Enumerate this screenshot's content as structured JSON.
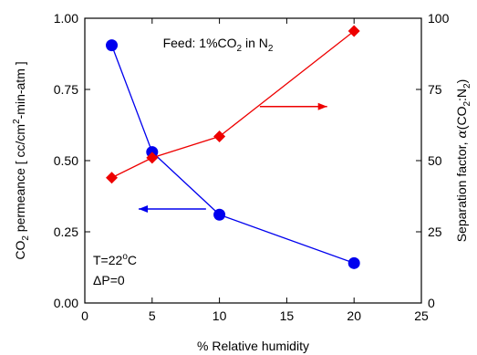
{
  "chart_data": {
    "type": "line",
    "annotation": {
      "feed": "Feed: 1%CO",
      "feed_sub1": "2",
      "feed_mid": " in N",
      "feed_sub2": "2"
    },
    "conditions": {
      "temperature": "T=22",
      "temperature_sup": "o",
      "temperature_unit": "C",
      "pressure": "ΔP=0"
    },
    "xlabel": "% Relative humidity",
    "xlim": [
      0,
      25
    ],
    "xticks": [
      0,
      5,
      10,
      15,
      20,
      25
    ],
    "ylabel_left": {
      "pre": "CO",
      "sub": "2",
      "mid": " permeance [ cc/cm",
      "sup": "2",
      "post": "-min-atm ]"
    },
    "ylim_left": [
      0,
      1
    ],
    "yticks_left": [
      "0.00",
      "0.25",
      "0.50",
      "0.75",
      "1.00"
    ],
    "ylabel_right": {
      "pre": "Separation factor, ",
      "alpha": "α",
      "open": "(CO",
      "sub1": "2",
      "colon": ":N",
      "sub2": "2",
      "close": ")"
    },
    "ylim_right": [
      0,
      100
    ],
    "yticks_right": [
      "0",
      "25",
      "50",
      "75",
      "100"
    ],
    "series": [
      {
        "axis": "left",
        "color": "#0000ee",
        "marker": "circle",
        "x": [
          2,
          5,
          10,
          20
        ],
        "y": [
          0.905,
          0.53,
          0.31,
          0.14
        ]
      },
      {
        "axis": "right",
        "color": "#ee0000",
        "marker": "diamond",
        "x": [
          2,
          5,
          10,
          20
        ],
        "y": [
          44,
          51,
          58.5,
          95.5
        ]
      }
    ],
    "arrows": [
      {
        "series": 0,
        "direction": "left"
      },
      {
        "series": 1,
        "direction": "right"
      }
    ]
  }
}
